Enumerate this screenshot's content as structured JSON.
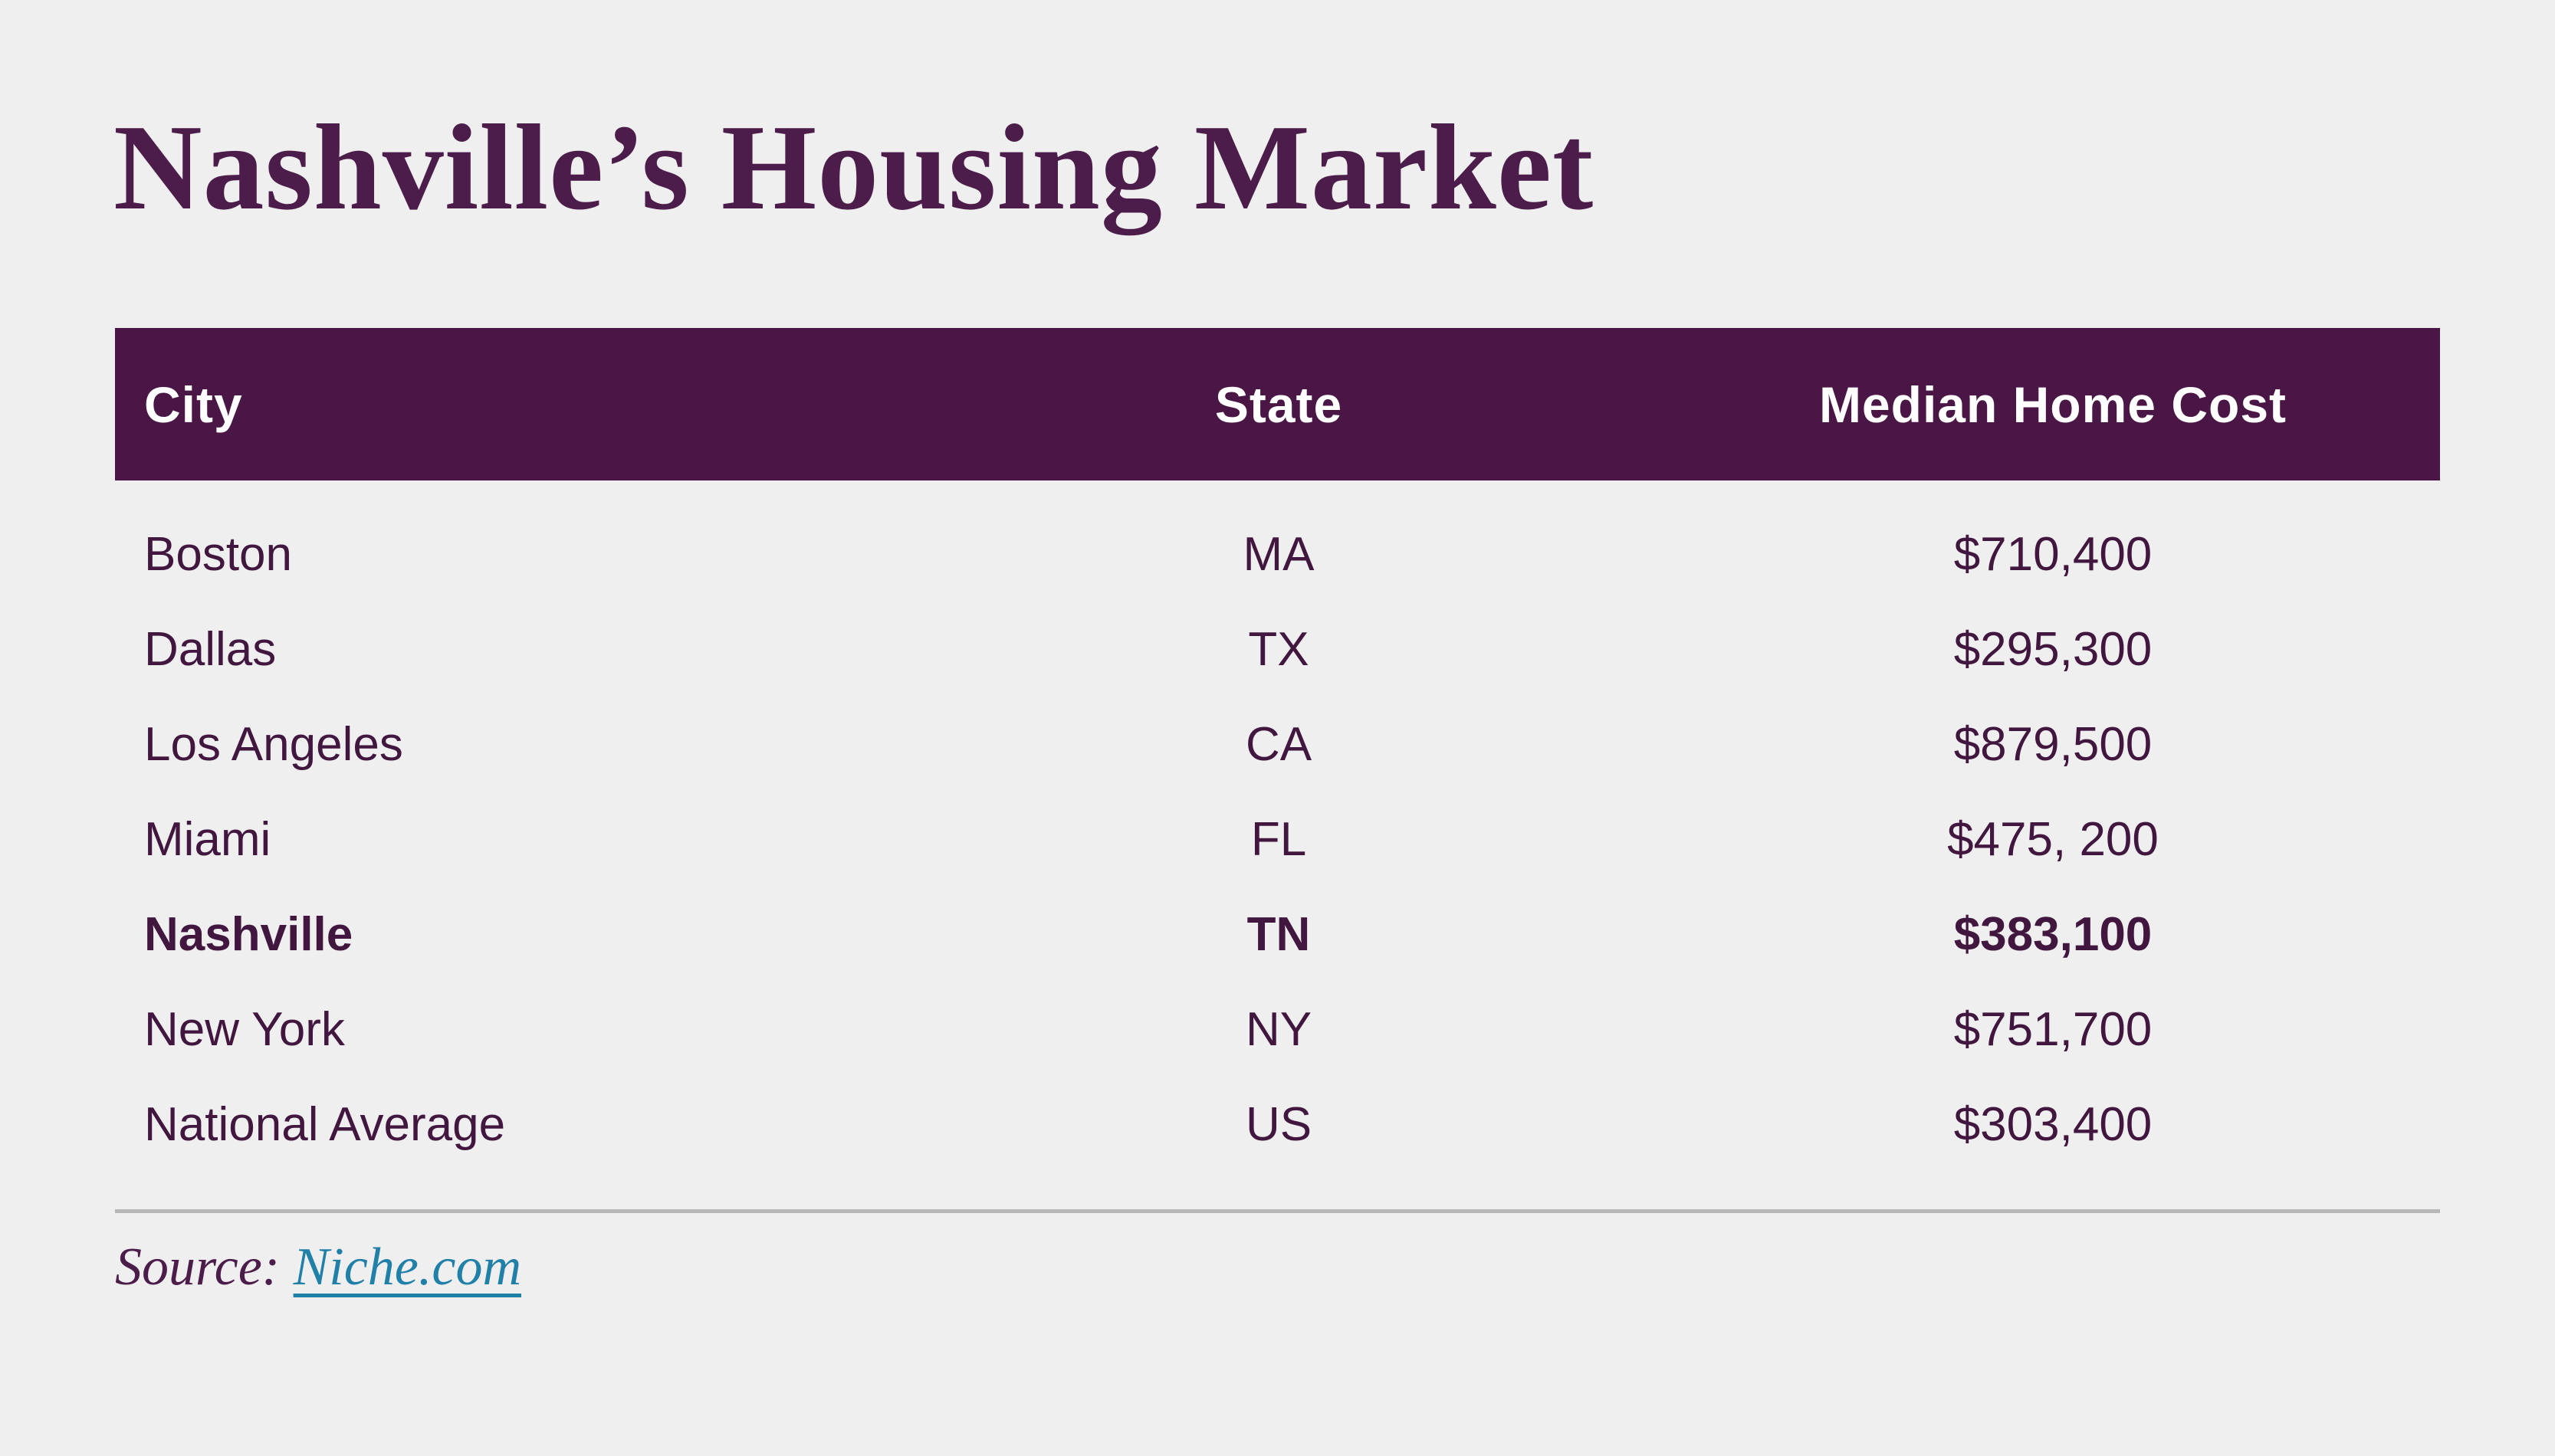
{
  "page": {
    "title": "Nashville’s Housing Market"
  },
  "table": {
    "columns": [
      "City",
      "State",
      "Median Home Cost"
    ],
    "rows": [
      {
        "city": "Boston",
        "state": "MA",
        "cost": "$710,400"
      },
      {
        "city": "Dallas",
        "state": "TX",
        "cost": "$295,300"
      },
      {
        "city": "Los Angeles",
        "state": "CA",
        "cost": "$879,500"
      },
      {
        "city": "Miami",
        "state": "FL",
        "cost": "$475, 200"
      },
      {
        "city": "Nashville",
        "state": "TN",
        "cost": "$383,100",
        "highlight": true
      },
      {
        "city": "New York",
        "state": "NY",
        "cost": "$751,700"
      },
      {
        "city": "National Average",
        "state": "US",
        "cost": "$303,400"
      }
    ]
  },
  "footer": {
    "source_label": "Source:",
    "source_link": "Niche.com"
  },
  "colors": {
    "bg": "#f0eff0",
    "header-bg": "#4a1645",
    "header-text": "#ffffff",
    "title-text": "#4c1d4a",
    "row-text": "#42173f",
    "divider": "#b7b7b7",
    "link": "#2080a8"
  }
}
